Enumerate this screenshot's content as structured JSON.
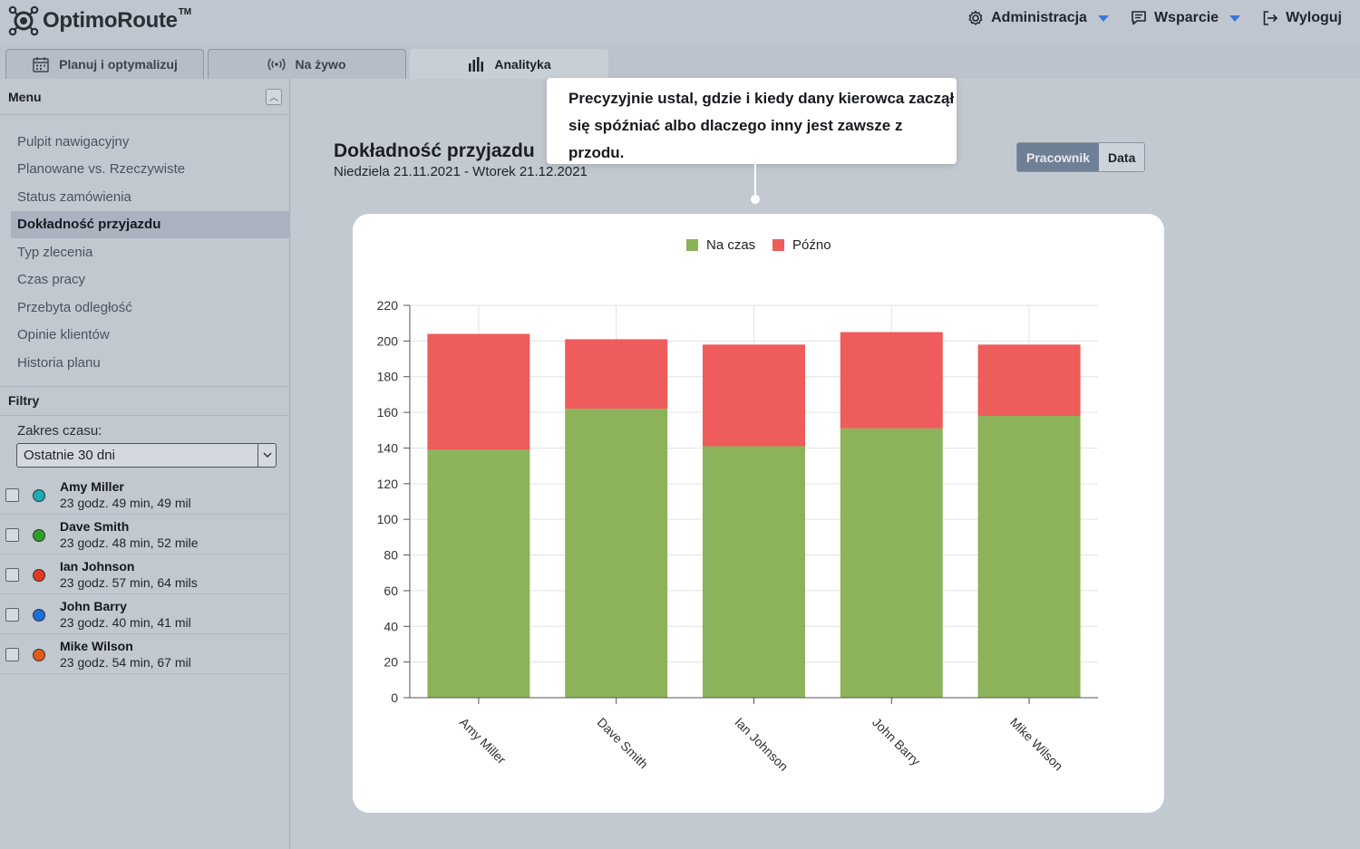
{
  "app": {
    "name": "OptimoRoute",
    "tm": "TM"
  },
  "topnav": {
    "admin": "Administracja",
    "support": "Wsparcie",
    "logout": "Wyloguj"
  },
  "tabs": [
    {
      "label": "Planuj i optymalizuj",
      "icon": "calendar-icon"
    },
    {
      "label": "Na żywo",
      "icon": "broadcast-icon"
    },
    {
      "label": "Analityka",
      "icon": "bar-chart-icon"
    }
  ],
  "sidebar": {
    "menu_title": "Menu",
    "items": [
      {
        "label": "Pulpit nawigacyjny"
      },
      {
        "label": "Planowane vs. Rzeczywiste"
      },
      {
        "label": "Status zamówienia"
      },
      {
        "label": "Dokładność przyjazdu"
      },
      {
        "label": "Typ zlecenia"
      },
      {
        "label": "Czas pracy"
      },
      {
        "label": "Przebyta odległość"
      },
      {
        "label": "Opinie klientów"
      },
      {
        "label": "Historia planu"
      }
    ],
    "active_index": 3,
    "filters_title": "Filtry",
    "range_label": "Zakres czasu:",
    "range_value": "Ostatnie 30 dni",
    "drivers": [
      {
        "name": "Amy Miller",
        "meta": "23 godz. 49 min, 49 mil",
        "color": "#1ea8b8"
      },
      {
        "name": "Dave Smith",
        "meta": "23 godz. 48 min, 52 mile",
        "color": "#2e9e2a"
      },
      {
        "name": "Ian Johnson",
        "meta": "23 godz. 57 min, 64 mils",
        "color": "#e23a1e"
      },
      {
        "name": "John Barry",
        "meta": "23 godz. 40 min, 41 mil",
        "color": "#1a6fe0"
      },
      {
        "name": "Mike Wilson",
        "meta": "23 godz. 54 min, 67 mil",
        "color": "#e35a18"
      }
    ]
  },
  "main": {
    "title": "Dokładność przyjazdu",
    "subtitle": "Niedziela 21.11.2021 - Wtorek 21.12.2021",
    "toggle": {
      "left": "Pracownik",
      "right": "Data"
    },
    "callout": "Precyzyjnie ustal, gdzie i kiedy dany kierowca zaczął się spóźniać albo dlaczego inny jest zawsze z przodu."
  },
  "chart_data": {
    "type": "bar",
    "stacked": true,
    "categories": [
      "Amy Miller",
      "Dave Smith",
      "Ian Johnson",
      "John Barry",
      "Mike Wilson"
    ],
    "series": [
      {
        "name": "Na czas",
        "color": "#8db35a",
        "values": [
          139,
          162,
          141,
          151,
          158
        ]
      },
      {
        "name": "Późno",
        "color": "#ef5c5c",
        "values": [
          65,
          39,
          57,
          54,
          40
        ]
      }
    ],
    "ylim": [
      0,
      220
    ],
    "yticks": [
      0,
      20,
      40,
      60,
      80,
      100,
      120,
      140,
      160,
      180,
      200,
      220
    ],
    "grid": true,
    "legend": "top-center"
  }
}
